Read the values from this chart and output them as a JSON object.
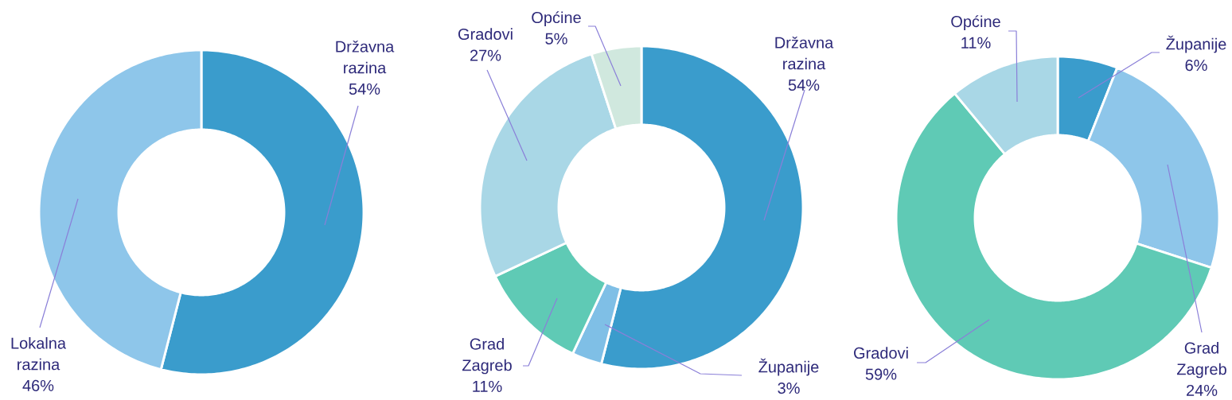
{
  "chart_data": [
    {
      "type": "donut",
      "categories": [
        "Državna razina",
        "Lokalna razina"
      ],
      "values": [
        54,
        46
      ],
      "value_labels": [
        "54%",
        "46%"
      ],
      "colors": [
        "#3a9ccc",
        "#8ec6ea"
      ]
    },
    {
      "type": "donut",
      "categories": [
        "Državna razina",
        "Županije",
        "Grad Zagreb",
        "Gradovi",
        "Općine"
      ],
      "values": [
        54,
        3,
        11,
        27,
        5
      ],
      "value_labels": [
        "54%",
        "3%",
        "11%",
        "27%",
        "5%"
      ],
      "colors": [
        "#3a9ccc",
        "#7fbfe6",
        "#5fcab5",
        "#a9d7e6",
        "#d0e8de"
      ]
    },
    {
      "type": "donut",
      "categories": [
        "Županije",
        "Grad Zagreb",
        "Gradovi",
        "Općine"
      ],
      "values": [
        6,
        24,
        59,
        11
      ],
      "value_labels": [
        "6%",
        "24%",
        "59%",
        "11%"
      ],
      "colors": [
        "#3a9ccc",
        "#8ec6ea",
        "#5fcab5",
        "#a9d7e6"
      ]
    }
  ]
}
